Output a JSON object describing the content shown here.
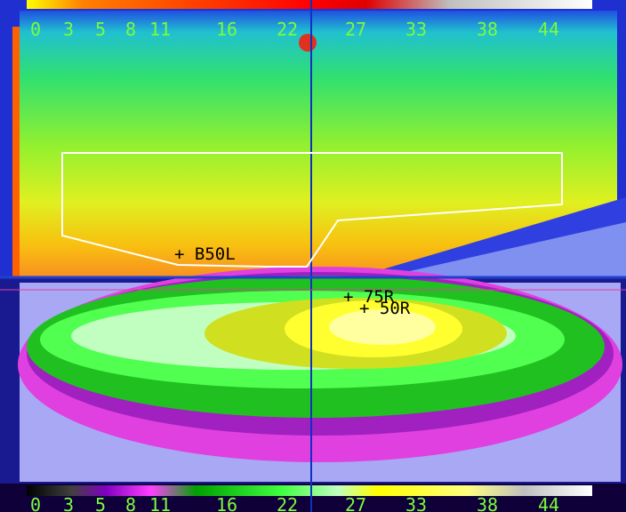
{
  "scale_top": {
    "labels": [
      "0",
      "3",
      "5",
      "8",
      "11",
      "16",
      "22",
      "27",
      "33",
      "38",
      "44"
    ]
  },
  "scale_bottom": {
    "labels": [
      "0",
      "3",
      "5",
      "8",
      "11",
      "16",
      "22",
      "27",
      "33",
      "38",
      "44"
    ]
  },
  "markers": [
    {
      "label": "+ B50L"
    },
    {
      "label": "+ 75R"
    },
    {
      "label": "+ 50R"
    }
  ]
}
